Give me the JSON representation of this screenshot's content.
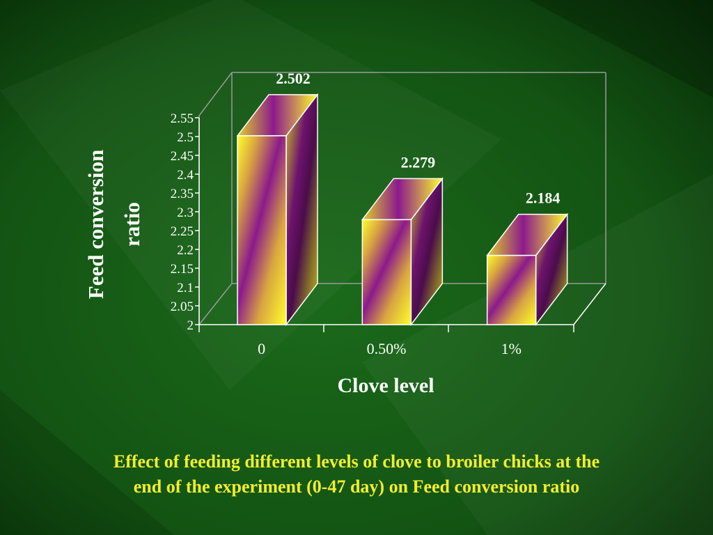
{
  "colors": {
    "background": "#0f4a0f",
    "bar_yellow": "#ffff2a",
    "bar_purple": "#8c1a8c",
    "text_white": "#ffffff",
    "caption_yellow": "#f2ee2a",
    "frame_gray": "#9a9a9a"
  },
  "chart_data": {
    "type": "bar",
    "style": "3d-box",
    "categories": [
      "0",
      "0.50%",
      "1%"
    ],
    "values": [
      2.502,
      2.279,
      2.184
    ],
    "data_labels": [
      "2.502",
      "2.279",
      "2.184"
    ],
    "xlabel": "Clove level",
    "ylabel": "Feed conversion ratio",
    "ylabel_lines": [
      "Feed conversion",
      "ratio"
    ],
    "ylim": [
      2,
      2.55
    ],
    "yticks": [
      "2",
      "2.05",
      "2.1",
      "2.15",
      "2.2",
      "2.25",
      "2.3",
      "2.35",
      "2.4",
      "2.45",
      "2.5",
      "2.55"
    ],
    "grid": false,
    "legend": "none"
  },
  "caption": {
    "line1": "Effect of feeding different levels of clove to broiler chicks  at the",
    "line2": "end of the experiment (0-47 day) on Feed conversion ratio"
  }
}
